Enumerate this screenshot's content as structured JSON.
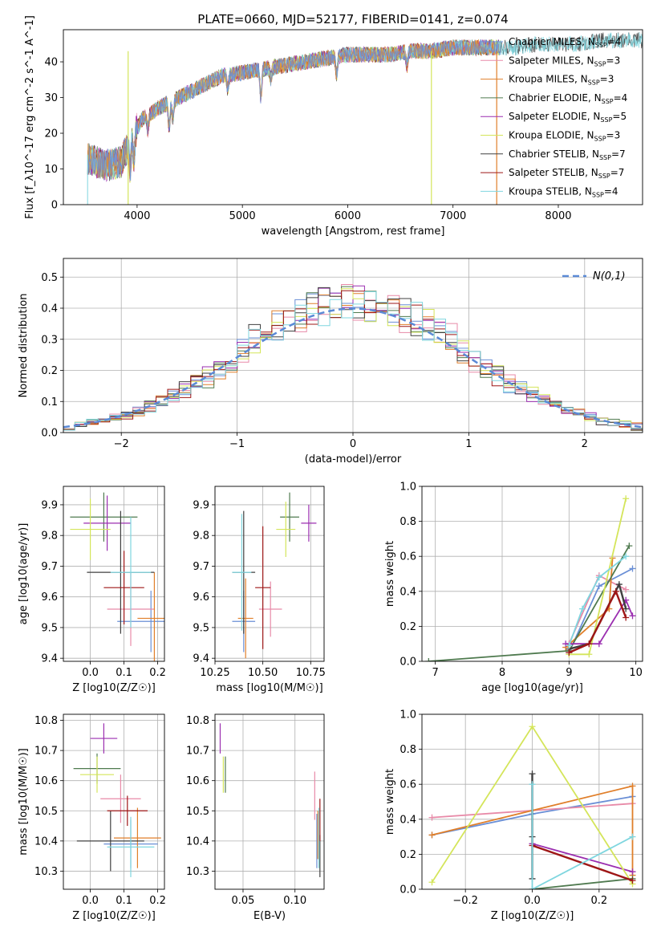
{
  "figure_title": "PLATE=0660, MJD=52177, FIBERID=0141, z=0.074",
  "colors": [
    "#6a8fd6",
    "#e88aa8",
    "#e07f2a",
    "#4f7a4f",
    "#9b2fb0",
    "#d4e55a",
    "#404040",
    "#9e1616",
    "#7fd6df"
  ],
  "chart_data": [
    {
      "id": "spectrum",
      "type": "line",
      "xlabel": "wavelength [Angstrom, rest frame]",
      "ylabel": "Flux [f_λ10^-17 erg cm^-2 s^-1 A^-1]",
      "xlim": [
        3300,
        8800
      ],
      "ylim": [
        0,
        49
      ],
      "xticks": [
        4000,
        5000,
        6000,
        7000,
        8000
      ],
      "yticks": [
        0,
        10,
        20,
        30,
        40
      ],
      "grid": false,
      "legend_position": "top-right",
      "legend": [
        {
          "name": "Chabrier MILES",
          "nssp": "4"
        },
        {
          "name": "Salpeter MILES",
          "nssp": "3"
        },
        {
          "name": "Kroupa MILES",
          "nssp": "3"
        },
        {
          "name": "Chabrier ELODIE",
          "nssp": "4"
        },
        {
          "name": "Salpeter ELODIE",
          "nssp": "5"
        },
        {
          "name": "Kroupa ELODIE",
          "nssp": "3"
        },
        {
          "name": "Chabrier STELIB",
          "nssp": "7"
        },
        {
          "name": "Salpeter STELIB",
          "nssp": "7"
        },
        {
          "name": "Kroupa STELIB",
          "nssp": "4"
        }
      ],
      "continuum": [
        [
          3530,
          13
        ],
        [
          3700,
          11
        ],
        [
          3850,
          12
        ],
        [
          3950,
          19
        ],
        [
          4050,
          24
        ],
        [
          4200,
          27
        ],
        [
          4400,
          30
        ],
        [
          4600,
          33
        ],
        [
          4800,
          36
        ],
        [
          5000,
          37
        ],
        [
          5200,
          38
        ],
        [
          5400,
          39
        ],
        [
          5600,
          40
        ],
        [
          5800,
          41
        ],
        [
          6000,
          42
        ],
        [
          6200,
          42
        ],
        [
          6400,
          42
        ],
        [
          6600,
          43
        ],
        [
          6800,
          43
        ],
        [
          7000,
          44
        ],
        [
          7200,
          44
        ],
        [
          7400,
          44
        ],
        [
          7600,
          44
        ],
        [
          7800,
          45
        ],
        [
          8000,
          45
        ],
        [
          8200,
          45
        ],
        [
          8400,
          46
        ],
        [
          8800,
          46
        ]
      ],
      "absorption_lines": [
        [
          3934,
          8
        ],
        [
          3969,
          8
        ],
        [
          4102,
          4
        ],
        [
          4305,
          7
        ],
        [
          4340,
          5
        ],
        [
          4861,
          4
        ],
        [
          5175,
          8
        ],
        [
          5270,
          3
        ],
        [
          5895,
          5
        ],
        [
          6563,
          4
        ]
      ]
    },
    {
      "id": "residuals",
      "type": "histogram",
      "xlabel": "(data-model)/error",
      "ylabel": "Normed distribution",
      "xlim": [
        -2.5,
        2.5
      ],
      "ylim": [
        0,
        0.56
      ],
      "xticks": [
        -2,
        -1,
        0,
        1,
        2
      ],
      "yticks": [
        0.0,
        0.1,
        0.2,
        0.3,
        0.4,
        0.5
      ],
      "grid": true,
      "legend_position": "top-right",
      "reference_curve": "N(0,1)",
      "bin_width": 0.1
    },
    {
      "id": "age-vs-Z",
      "type": "errorbar",
      "xlabel": "Z [log10(Z/Z☉)]",
      "ylabel": "age [log10(age/yr)]",
      "xlim": [
        -0.08,
        0.22
      ],
      "ylim": [
        9.39,
        9.96
      ],
      "xticks": [
        0.0,
        0.1,
        0.2
      ],
      "yticks": [
        9.4,
        9.5,
        9.6,
        9.7,
        9.8,
        9.9
      ],
      "grid": true,
      "points": [
        {
          "x": 0.18,
          "y": 9.52,
          "xerr": 0.1,
          "yerr": 0.1
        },
        {
          "x": 0.12,
          "y": 9.56,
          "xerr": 0.07,
          "yerr": 0.12
        },
        {
          "x": 0.19,
          "y": 9.53,
          "xerr": 0.05,
          "yerr": 0.15
        },
        {
          "x": 0.04,
          "y": 9.86,
          "xerr": 0.1,
          "yerr": 0.08
        },
        {
          "x": 0.05,
          "y": 9.84,
          "xerr": 0.07,
          "yerr": 0.09
        },
        {
          "x": 0.0,
          "y": 9.82,
          "xerr": 0.06,
          "yerr": 0.1
        },
        {
          "x": 0.09,
          "y": 9.68,
          "xerr": 0.1,
          "yerr": 0.2
        },
        {
          "x": 0.1,
          "y": 9.63,
          "xerr": 0.06,
          "yerr": 0.12
        },
        {
          "x": 0.12,
          "y": 9.68,
          "xerr": 0.06,
          "yerr": 0.18
        }
      ]
    },
    {
      "id": "age-vs-mass",
      "type": "errorbar",
      "xlabel": "mass [log10(M/M☉)]",
      "ylabel": "",
      "xlim": [
        10.25,
        10.82
      ],
      "ylim": [
        9.39,
        9.96
      ],
      "xticks": [
        10.25,
        10.5,
        10.75
      ],
      "yticks": [
        9.4,
        9.5,
        9.6,
        9.7,
        9.8,
        9.9
      ],
      "grid": true,
      "points": [
        {
          "x": 10.4,
          "y": 9.52,
          "xerr": 0.06,
          "yerr": 0.1
        },
        {
          "x": 10.54,
          "y": 9.56,
          "xerr": 0.06,
          "yerr": 0.09
        },
        {
          "x": 10.41,
          "y": 9.53,
          "xerr": 0.04,
          "yerr": 0.13
        },
        {
          "x": 10.64,
          "y": 9.86,
          "xerr": 0.05,
          "yerr": 0.08
        },
        {
          "x": 10.74,
          "y": 9.84,
          "xerr": 0.04,
          "yerr": 0.06
        },
        {
          "x": 10.62,
          "y": 9.82,
          "xerr": 0.05,
          "yerr": 0.09
        },
        {
          "x": 10.4,
          "y": 9.68,
          "xerr": 0.06,
          "yerr": 0.2
        },
        {
          "x": 10.5,
          "y": 9.63,
          "xerr": 0.04,
          "yerr": 0.2
        },
        {
          "x": 10.39,
          "y": 9.68,
          "xerr": 0.05,
          "yerr": 0.19
        }
      ]
    },
    {
      "id": "weight-vs-age",
      "type": "line",
      "xlabel": "age [log10(age/yr)]",
      "ylabel": "mass weight",
      "xlim": [
        6.8,
        10.1
      ],
      "ylim": [
        0,
        1.0
      ],
      "xticks": [
        7,
        8,
        9,
        10
      ],
      "yticks": [
        0.0,
        0.2,
        0.4,
        0.6,
        0.8,
        1.0
      ],
      "grid": true,
      "series": [
        {
          "name": "Chabrier MILES",
          "x": [
            9.0,
            9.45,
            9.95
          ],
          "y": [
            0.05,
            0.43,
            0.53
          ]
        },
        {
          "name": "Salpeter MILES",
          "x": [
            9.0,
            9.45,
            9.85
          ],
          "y": [
            0.1,
            0.49,
            0.41
          ]
        },
        {
          "name": "Kroupa MILES",
          "x": [
            8.95,
            9.6,
            9.65
          ],
          "y": [
            0.08,
            0.3,
            0.59
          ]
        },
        {
          "name": "Chabrier ELODIE",
          "x": [
            6.9,
            9.0,
            9.9
          ],
          "y": [
            0.0,
            0.06,
            0.66
          ]
        },
        {
          "name": "Salpeter ELODIE",
          "x": [
            8.95,
            9.45,
            9.85,
            9.95
          ],
          "y": [
            0.1,
            0.1,
            0.35,
            0.26
          ]
        },
        {
          "name": "Kroupa ELODIE",
          "x": [
            9.0,
            9.3,
            9.85
          ],
          "y": [
            0.04,
            0.04,
            0.93
          ]
        },
        {
          "name": "Chabrier STELIB",
          "x": [
            9.0,
            9.3,
            9.75,
            9.85
          ],
          "y": [
            0.07,
            0.1,
            0.44,
            0.3
          ]
        },
        {
          "name": "Salpeter STELIB",
          "x": [
            9.0,
            9.3,
            9.7,
            9.85
          ],
          "y": [
            0.05,
            0.1,
            0.4,
            0.25
          ]
        },
        {
          "name": "Kroupa STELIB",
          "x": [
            9.0,
            9.2,
            9.45,
            9.85
          ],
          "y": [
            0.09,
            0.3,
            0.48,
            0.6
          ]
        }
      ]
    },
    {
      "id": "mass-vs-Z",
      "type": "errorbar",
      "xlabel": "Z [log10(Z/Z☉)]",
      "ylabel": "mass [log10(M/M☉)]",
      "xlim": [
        -0.08,
        0.22
      ],
      "ylim": [
        10.24,
        10.82
      ],
      "xticks": [
        0.0,
        0.1,
        0.2
      ],
      "yticks": [
        10.3,
        10.4,
        10.5,
        10.6,
        10.7,
        10.8
      ],
      "grid": true,
      "points": [
        {
          "x": 0.12,
          "y": 10.39,
          "xerr": 0.08,
          "yerr": 0.08
        },
        {
          "x": 0.09,
          "y": 10.54,
          "xerr": 0.06,
          "yerr": 0.08
        },
        {
          "x": 0.14,
          "y": 10.41,
          "xerr": 0.07,
          "yerr": 0.1
        },
        {
          "x": 0.02,
          "y": 10.64,
          "xerr": 0.07,
          "yerr": 0.05
        },
        {
          "x": 0.04,
          "y": 10.74,
          "xerr": 0.04,
          "yerr": 0.05
        },
        {
          "x": 0.02,
          "y": 10.62,
          "xerr": 0.05,
          "yerr": 0.06
        },
        {
          "x": 0.06,
          "y": 10.4,
          "xerr": 0.1,
          "yerr": 0.1
        },
        {
          "x": 0.11,
          "y": 10.5,
          "xerr": 0.06,
          "yerr": 0.05
        },
        {
          "x": 0.12,
          "y": 10.38,
          "xerr": 0.07,
          "yerr": 0.1
        }
      ]
    },
    {
      "id": "mass-vs-ebv",
      "type": "errorbar",
      "xlabel": "E(B-V)",
      "ylabel": "",
      "xlim": [
        0.023,
        0.128
      ],
      "ylim": [
        10.24,
        10.82
      ],
      "xticks": [
        0.05,
        0.1
      ],
      "yticks": [
        10.3,
        10.4,
        10.5,
        10.6,
        10.7,
        10.8
      ],
      "grid": true,
      "points": [
        {
          "x": 0.121,
          "y": 10.4,
          "xerr": 0,
          "yerr": 0.09
        },
        {
          "x": 0.119,
          "y": 10.55,
          "xerr": 0,
          "yerr": 0.08
        },
        {
          "x": 0.122,
          "y": 10.42,
          "xerr": 0,
          "yerr": 0.08
        },
        {
          "x": 0.033,
          "y": 10.62,
          "xerr": 0,
          "yerr": 0.06
        },
        {
          "x": 0.028,
          "y": 10.74,
          "xerr": 0,
          "yerr": 0.05
        },
        {
          "x": 0.031,
          "y": 10.62,
          "xerr": 0,
          "yerr": 0.06
        },
        {
          "x": 0.124,
          "y": 10.35,
          "xerr": 0,
          "yerr": 0.07
        },
        {
          "x": 0.124,
          "y": 10.47,
          "xerr": 0,
          "yerr": 0.07
        },
        {
          "x": 0.123,
          "y": 10.41,
          "xerr": 0,
          "yerr": 0.1
        }
      ]
    },
    {
      "id": "weight-vs-Z",
      "type": "line",
      "xlabel": "Z [log10(Z/Z☉)]",
      "ylabel": "mass weight",
      "xlim": [
        -0.33,
        0.33
      ],
      "ylim": [
        0,
        1.0
      ],
      "xticks": [
        -0.2,
        0.0,
        0.2
      ],
      "yticks": [
        0.0,
        0.2,
        0.4,
        0.6,
        0.8,
        1.0
      ],
      "grid": true,
      "series": [
        {
          "name": "Chabrier MILES",
          "x": [
            -0.3,
            0.0,
            0.3
          ],
          "y": [
            0.31,
            0.43,
            0.53
          ]
        },
        {
          "name": "Salpeter MILES",
          "x": [
            -0.3,
            0.3
          ],
          "y": [
            0.41,
            0.49
          ]
        },
        {
          "name": "Kroupa MILES",
          "x": [
            -0.3,
            0.3,
            0.3
          ],
          "y": [
            0.31,
            0.59,
            0.08
          ]
        },
        {
          "name": "Chabrier ELODIE",
          "x": [
            0.0,
            0.3
          ],
          "y": [
            0.0,
            0.06
          ]
        },
        {
          "name": "Salpeter ELODIE",
          "x": [
            0.0,
            0.3
          ],
          "y": [
            0.26,
            0.1
          ]
        },
        {
          "name": "Kroupa ELODIE",
          "x": [
            -0.3,
            0.0,
            0.3
          ],
          "y": [
            0.04,
            0.93,
            0.03
          ]
        },
        {
          "name": "Chabrier STELIB",
          "x": [
            0.0,
            0.0,
            0.0
          ],
          "y": [
            0.3,
            0.66,
            0.06
          ]
        },
        {
          "name": "Salpeter STELIB",
          "x": [
            0.0,
            0.3
          ],
          "y": [
            0.25,
            0.05
          ]
        },
        {
          "name": "Kroupa STELIB",
          "x": [
            0.0,
            0.0,
            0.3
          ],
          "y": [
            0.6,
            0.0,
            0.3
          ]
        }
      ]
    }
  ]
}
